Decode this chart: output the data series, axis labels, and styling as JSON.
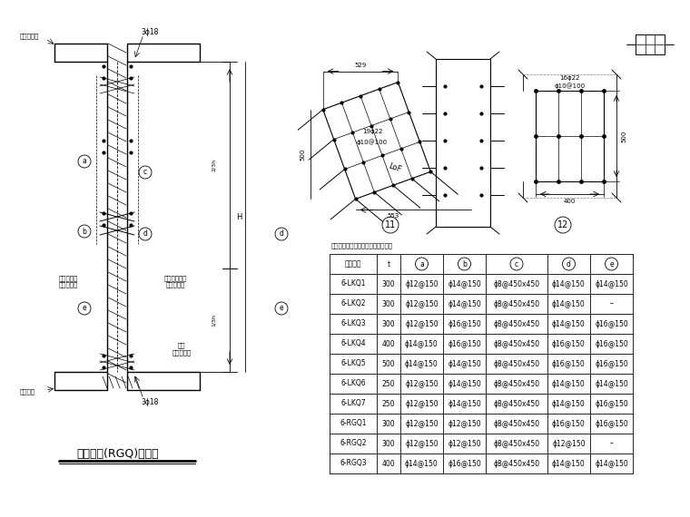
{
  "title": "人防隔墙(RGQ)大样图",
  "table_title": "临空墙、人防墙墙配筋表（模位筋）",
  "table_headers": [
    "墙体编号",
    "t",
    "a",
    "b",
    "c",
    "d",
    "e"
  ],
  "table_col_headers_circled": [
    false,
    false,
    true,
    true,
    true,
    true,
    true
  ],
  "table_data": [
    [
      "6-LKQ1",
      "300",
      "ϕ12@150",
      "ϕ14@150",
      "ϕ8@450x450",
      "ϕ14@150",
      "ϕ14@150"
    ],
    [
      "6-LKQ2",
      "300",
      "ϕ12@150",
      "ϕ14@150",
      "ϕ8@450x450",
      "ϕ14@150",
      "–"
    ],
    [
      "6-LKQ3",
      "300",
      "ϕ12@150",
      "ϕ16@150",
      "ϕ8@450x450",
      "ϕ14@150",
      "ϕ16@150"
    ],
    [
      "6-LKQ4",
      "400",
      "ϕ14@150",
      "ϕ16@150",
      "ϕ8@450x450",
      "ϕ16@150",
      "ϕ16@150"
    ],
    [
      "6-LKQ5",
      "500",
      "ϕ14@150",
      "ϕ14@150",
      "ϕ8@450x450",
      "ϕ16@150",
      "ϕ16@150"
    ],
    [
      "6-LKQ6",
      "250",
      "ϕ12@150",
      "ϕ14@150",
      "ϕ8@450x450",
      "ϕ14@150",
      "ϕ14@150"
    ],
    [
      "6-LKQ7",
      "250",
      "ϕ12@150",
      "ϕ14@150",
      "ϕ8@450x450",
      "ϕ14@150",
      "ϕ16@150"
    ],
    [
      "6-RGQ1",
      "300",
      "ϕ12@150",
      "ϕ12@150",
      "ϕ8@450x450",
      "ϕ16@150",
      "ϕ16@150"
    ],
    [
      "6-RGQ2",
      "300",
      "ϕ12@150",
      "ϕ12@150",
      "ϕ8@450x450",
      "ϕ12@150",
      "–"
    ],
    [
      "6-RGQ3",
      "400",
      "ϕ14@150",
      "ϕ16@150",
      "ϕ8@450x450",
      "ϕ14@150",
      "ϕ14@150"
    ]
  ],
  "bg_color": "#ffffff",
  "label_left": "一侧防护区\n或防护区内",
  "label_right": "另一侧防护区\n或防护区外",
  "label_top": "顶板面标高",
  "label_bottom": "板面标高",
  "label_top_rebar": "3ϕ18",
  "label_bottom_rebar": "3ϕ18",
  "label_col": "柱筋\n（底层柱）",
  "detail11_w": "529",
  "detail11_h": "500",
  "detail11_b": "553",
  "detail11_rebar1": "19ϕ22",
  "detail11_rebar2": "ϕ10@100",
  "detail11_lof": "LoF",
  "detail12_w": "400",
  "detail12_h": "500",
  "detail12_rebar1": "16ϕ22",
  "detail12_rebar2": "ϕ10@100"
}
